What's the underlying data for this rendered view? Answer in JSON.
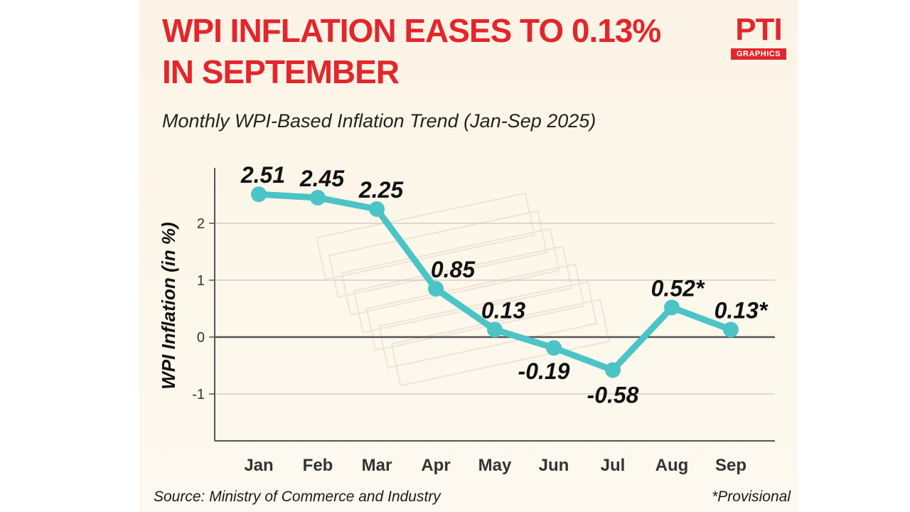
{
  "header": {
    "title_line1": "WPI INFLATION EASES TO 0.13%",
    "title_line2": "IN SEPTEMBER",
    "subtitle": "Monthly WPI-Based Inflation Trend (Jan-Sep 2025)"
  },
  "logo": {
    "mark": "PTI",
    "tag": "GRAPHICS"
  },
  "footer": {
    "source": "Source: Ministry of Commerce and Industry",
    "note": "*Provisional"
  },
  "colors": {
    "title": "#e3262c",
    "line": "#4cc4c6",
    "axis": "#555555",
    "zero_line": "#555555",
    "grid": "#bbbbbb"
  },
  "chart_data": {
    "type": "line",
    "title": "WPI INFLATION EASES TO 0.13% IN SEPTEMBER",
    "subtitle": "Monthly WPI-Based Inflation Trend (Jan-Sep 2025)",
    "xlabel": "",
    "ylabel": "WPI Inflation (in %)",
    "categories": [
      "Jan",
      "Feb",
      "Mar",
      "Apr",
      "May",
      "Jun",
      "Jul",
      "Aug",
      "Sep"
    ],
    "series": [
      {
        "values": [
          2.51,
          2.45,
          2.25,
          0.85,
          0.13,
          -0.19,
          -0.58,
          0.52,
          0.13
        ],
        "labels": [
          "2.51",
          "2.45",
          "2.25",
          "0.85",
          "0.13",
          "-0.19",
          "-0.58",
          "0.52*",
          "0.13*"
        ]
      }
    ],
    "ylim": [
      -1.8,
      2.9
    ],
    "yticks": [
      -1,
      0,
      1,
      2
    ],
    "ytick_labels": [
      "-1",
      "0",
      "1",
      "2"
    ],
    "grid": true,
    "legend": "none"
  }
}
